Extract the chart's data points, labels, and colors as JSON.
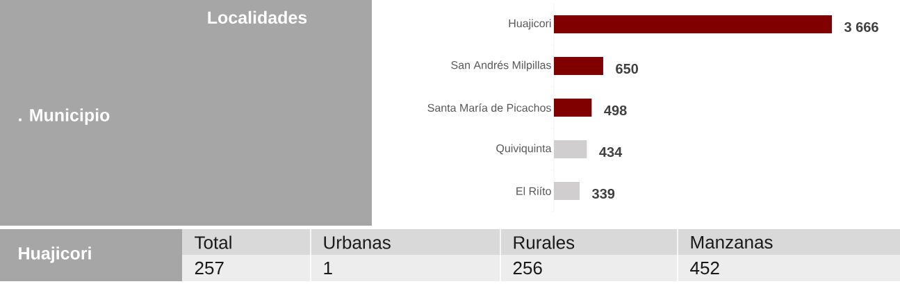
{
  "chart_data": [
    {
      "type": "other",
      "title": "Localidades",
      "subtitle": ". Municipio",
      "annotations": [
        "Huajicori",
        "Total",
        "Urbanas",
        "Rurales",
        "Manzanas",
        "257",
        "1",
        "256",
        "452"
      ]
    },
    {
      "type": "bar",
      "orientation": "horizontal",
      "categories": [
        "Huajicori",
        "San Andrés Milpillas",
        "Santa María de Picachos",
        "Quiviquinta",
        "El Riíto"
      ],
      "values": [
        3666,
        650,
        498,
        434,
        339
      ],
      "colors": [
        "#800000",
        "#800000",
        "#800000",
        "#d0cece",
        "#d0cece"
      ],
      "value_labels": [
        "3 666",
        "650",
        "498",
        "434",
        "339"
      ]
    }
  ]
}
